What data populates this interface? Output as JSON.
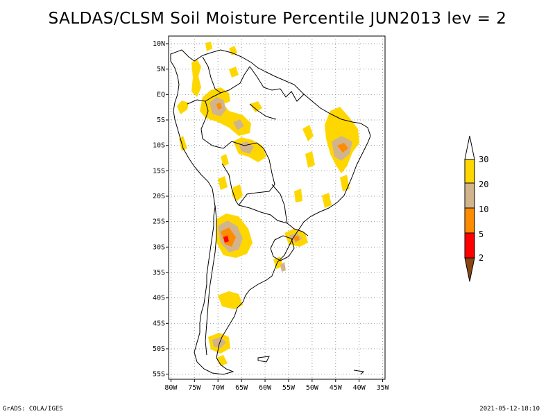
{
  "title": "SALDAS/CLSM Soil Moisture Percentile JUN2013 lev = 2",
  "map": {
    "lat_labels": [
      "10N",
      "5N",
      "EQ",
      "5S",
      "10S",
      "15S",
      "20S",
      "25S",
      "30S",
      "35S",
      "40S",
      "45S",
      "50S",
      "55S"
    ],
    "lon_labels": [
      "80W",
      "75W",
      "70W",
      "65W",
      "60W",
      "55W",
      "50W",
      "45W",
      "40W",
      "35W"
    ],
    "lat_range": [
      11.5,
      -56
    ],
    "lon_range": [
      -80.5,
      -34.5
    ]
  },
  "colorbar": {
    "labels": [
      "30",
      "20",
      "10",
      "5",
      "2"
    ],
    "colors": {
      "above_30": "#ffffff",
      "c20_30": "#ffd700",
      "c10_20": "#d2b48c",
      "c5_10": "#ff8c00",
      "c2_5": "#ff0000",
      "below_2": "#8b4513"
    }
  },
  "footer": {
    "left": "GrADS: COLA/IGES",
    "right": "2021-05-12-18:10"
  }
}
